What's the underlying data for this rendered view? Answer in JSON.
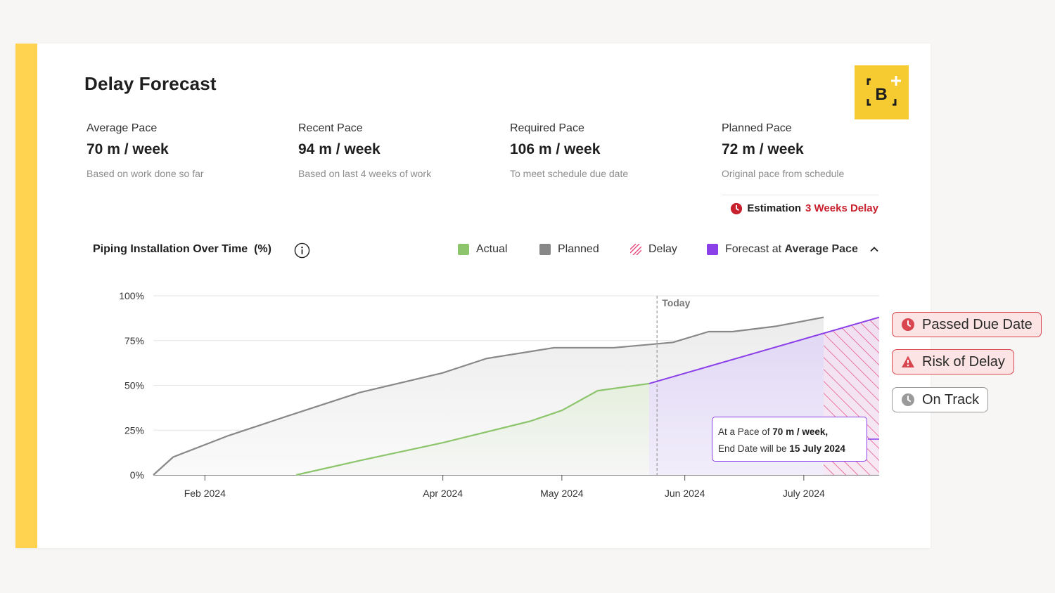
{
  "header": {
    "title": "Delay Forecast",
    "logo_text": "B+"
  },
  "metrics": [
    {
      "label": "Average Pace",
      "value": "70 m / week",
      "sub": "Based on work done so far"
    },
    {
      "label": "Recent Pace",
      "value": "94 m / week",
      "sub": "Based on last 4 weeks of work"
    },
    {
      "label": "Required Pace",
      "value": "106 m / week",
      "sub": "To meet schedule due date"
    },
    {
      "label": "Planned Pace",
      "value": "72 m / week",
      "sub": "Original pace from schedule"
    }
  ],
  "estimation": {
    "label": "Estimation",
    "value": "3 Weeks Delay",
    "color": "#c8212d"
  },
  "chart_header": {
    "title": "Piping Installation Over Time  (%)"
  },
  "legend": {
    "actual": "Actual",
    "planned": "Planned",
    "delay": "Delay",
    "forecast_prefix": "Forecast at ",
    "forecast_bold": "Average Pace"
  },
  "tooltip": {
    "line1_prefix": "At a Pace of ",
    "line1_bold": "70 m / week,",
    "line2_prefix": "End Date will be ",
    "line2_bold": "15 July 2024"
  },
  "status_pills": [
    {
      "label": "Passed Due Date",
      "icon": "clock-icon",
      "tone": "red"
    },
    {
      "label": "Risk of Delay",
      "icon": "warning-icon",
      "tone": "red"
    },
    {
      "label": "On Track",
      "icon": "clock-icon",
      "tone": "grey"
    }
  ],
  "colors": {
    "accent": "#ffd34f",
    "logo": "#f6cb32",
    "actual": "#8cc56b",
    "planned": "#888888",
    "delay": "#e4477d",
    "forecast": "#8b3fe8",
    "alert_red": "#c8212d"
  },
  "chart_data": {
    "type": "line",
    "title": "Piping Installation Over Time  (%)",
    "y_ticks": [
      "100%",
      "75%",
      "50%",
      "25%",
      "0%"
    ],
    "x_ticks": [
      "Feb 2024",
      "Apr 2024",
      "May 2024",
      "Jun 2024",
      "July 2024"
    ],
    "today_label": "Today",
    "today_date": "2024-05-25",
    "ylim": [
      0,
      100
    ],
    "xlim": [
      "2024-01-19",
      "2024-07-20"
    ],
    "grid": true,
    "series": [
      {
        "name": "Planned",
        "color": "#888888",
        "points": [
          [
            "2024-01-19",
            0
          ],
          [
            "2024-01-24",
            10
          ],
          [
            "2024-02-07",
            22
          ],
          [
            "2024-02-22",
            33
          ],
          [
            "2024-03-11",
            46
          ],
          [
            "2024-04-01",
            57
          ],
          [
            "2024-04-12",
            65
          ],
          [
            "2024-04-29",
            71
          ],
          [
            "2024-05-05",
            71
          ],
          [
            "2024-05-14",
            71
          ],
          [
            "2024-05-29",
            74
          ],
          [
            "2024-06-07",
            80
          ],
          [
            "2024-06-13",
            80
          ],
          [
            "2024-06-24",
            83
          ],
          [
            "2024-07-06",
            88
          ]
        ]
      },
      {
        "name": "Actual",
        "color": "#8cc56b",
        "points": [
          [
            "2024-02-24",
            0
          ],
          [
            "2024-03-11",
            8
          ],
          [
            "2024-04-01",
            18
          ],
          [
            "2024-04-23",
            30
          ],
          [
            "2024-05-01",
            36
          ],
          [
            "2024-05-10",
            47
          ],
          [
            "2024-05-23",
            51
          ]
        ]
      },
      {
        "name": "Forecast at Average Pace",
        "color": "#8b3fe8",
        "points": [
          [
            "2024-05-23",
            51
          ],
          [
            "2024-07-20",
            88
          ]
        ]
      }
    ],
    "delay_region": [
      "2024-07-06",
      "2024-07-20"
    ],
    "end_marker": [
      "2024-07-20",
      20
    ]
  }
}
